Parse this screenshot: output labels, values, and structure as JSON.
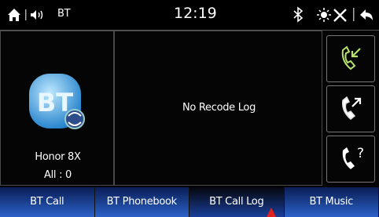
{
  "status_bar": {
    "source": "BT",
    "time": "12:19"
  },
  "device": {
    "name": "Honor 8X",
    "count": "All : 0"
  },
  "log": {
    "message": "No Recode Log"
  },
  "tabs": [
    "BT Call",
    "BT Phonebook",
    "BT Call Log",
    "BT Music"
  ]
}
